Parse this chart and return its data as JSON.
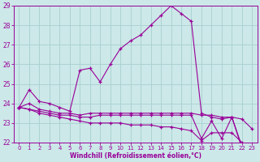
{
  "xlabel": "Windchill (Refroidissement éolien,°C)",
  "background_color": "#cce8e8",
  "grid_color": "#a8d0d0",
  "line_color": "#990099",
  "xlim": [
    -0.5,
    23.5
  ],
  "ylim": [
    22,
    29
  ],
  "yticks": [
    22,
    23,
    24,
    25,
    26,
    27,
    28,
    29
  ],
  "xticks": [
    0,
    1,
    2,
    3,
    4,
    5,
    6,
    7,
    8,
    9,
    10,
    11,
    12,
    13,
    14,
    15,
    16,
    17,
    18,
    19,
    20,
    21,
    22,
    23
  ],
  "series": {
    "line1_upper": {
      "x": [
        0,
        1,
        2,
        3,
        4,
        5,
        6,
        7,
        8,
        9,
        10,
        11,
        12,
        13,
        14,
        15,
        16,
        17,
        18,
        19,
        20,
        21,
        22,
        23
      ],
      "y": [
        23.8,
        24.7,
        24.1,
        24.0,
        23.8,
        23.6,
        25.7,
        25.8,
        25.1,
        26.0,
        26.8,
        27.2,
        27.5,
        28.0,
        28.5,
        29.0,
        28.6,
        28.2,
        23.5,
        23.3,
        23.2,
        23.3,
        21.7,
        21.5
      ]
    },
    "line2_mid_upper": {
      "x": [
        0,
        1,
        2,
        3,
        4,
        5,
        6,
        7,
        8,
        9,
        10,
        11,
        12,
        13,
        14,
        15,
        16,
        17,
        18,
        19,
        20,
        21,
        22,
        23
      ],
      "y": [
        23.8,
        24.0,
        23.7,
        23.6,
        23.5,
        23.5,
        23.4,
        23.5,
        23.5,
        23.5,
        23.5,
        23.5,
        23.5,
        23.5,
        23.5,
        23.5,
        23.5,
        23.5,
        23.4,
        23.4,
        23.3,
        23.3,
        23.2,
        22.7
      ]
    },
    "line3_mid_lower": {
      "x": [
        0,
        1,
        2,
        3,
        4,
        5,
        6,
        7,
        8,
        9,
        10,
        11,
        12,
        13,
        14,
        15,
        16,
        17,
        18,
        19,
        20,
        21,
        22,
        23
      ],
      "y": [
        23.8,
        23.7,
        23.6,
        23.5,
        23.4,
        23.4,
        23.3,
        23.3,
        23.4,
        23.4,
        23.4,
        23.4,
        23.4,
        23.4,
        23.4,
        23.4,
        23.4,
        23.4,
        22.2,
        23.1,
        22.2,
        23.3,
        21.8,
        21.5
      ]
    },
    "line4_lower": {
      "x": [
        0,
        1,
        2,
        3,
        4,
        5,
        6,
        7,
        8,
        9,
        10,
        11,
        12,
        13,
        14,
        15,
        16,
        17,
        18,
        19,
        20,
        21,
        22,
        23
      ],
      "y": [
        23.8,
        23.7,
        23.5,
        23.4,
        23.3,
        23.2,
        23.1,
        23.0,
        23.0,
        23.0,
        23.0,
        22.9,
        22.9,
        22.9,
        22.8,
        22.8,
        22.7,
        22.6,
        22.1,
        22.5,
        22.5,
        22.5,
        22.0,
        21.5
      ]
    }
  }
}
